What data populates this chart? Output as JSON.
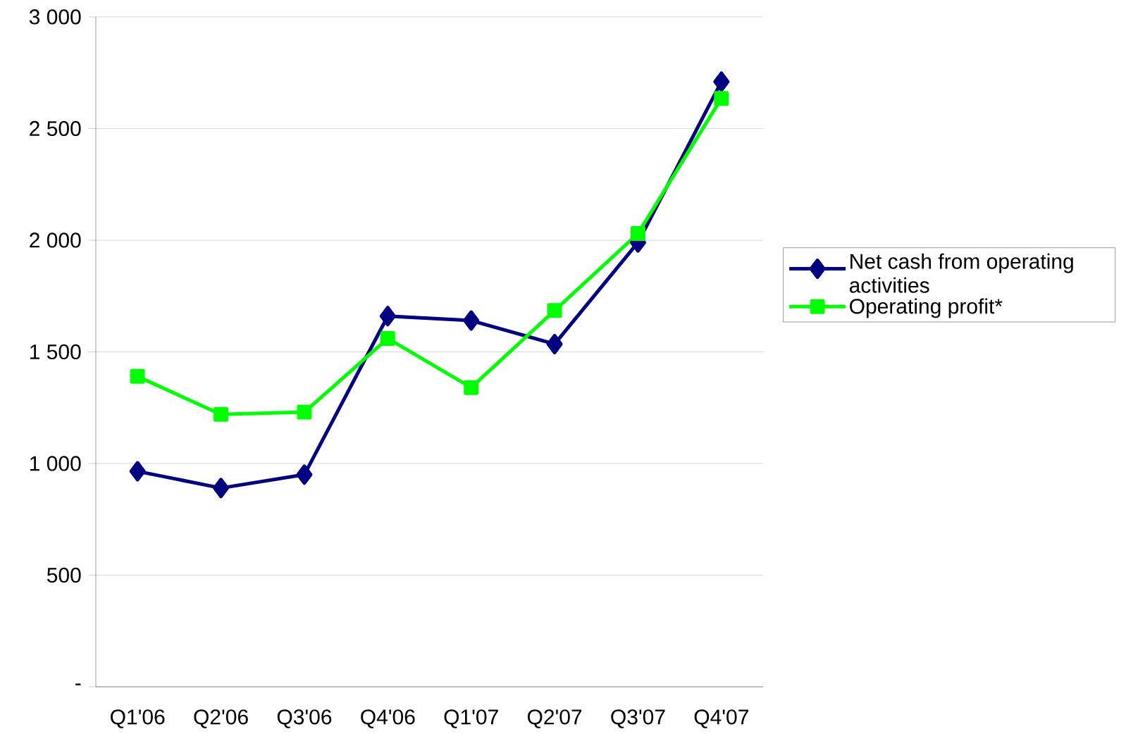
{
  "chart_data": {
    "type": "line",
    "categories": [
      "Q1'06",
      "Q2'06",
      "Q3'06",
      "Q4'06",
      "Q1'07",
      "Q2'07",
      "Q3'07",
      "Q4'07"
    ],
    "series": [
      {
        "name": "Net cash from operating activities",
        "color": "#000080",
        "marker": "diamond",
        "values": [
          965,
          890,
          950,
          1660,
          1640,
          1535,
          1990,
          2710
        ]
      },
      {
        "name": "Operating profit*",
        "color": "#00ff00",
        "marker": "square",
        "values": [
          1390,
          1220,
          1230,
          1560,
          1340,
          1685,
          2030,
          2635
        ]
      }
    ],
    "ylim": [
      0,
      3000
    ],
    "yticks": [
      {
        "value": 0,
        "label": "-"
      },
      {
        "value": 500,
        "label": "500"
      },
      {
        "value": 1000,
        "label": "1 000"
      },
      {
        "value": 1500,
        "label": "1 500"
      },
      {
        "value": 2000,
        "label": "2 000"
      },
      {
        "value": 2500,
        "label": "2 500"
      },
      {
        "value": 3000,
        "label": "3 000"
      }
    ],
    "grid": "y",
    "legend": "right"
  }
}
